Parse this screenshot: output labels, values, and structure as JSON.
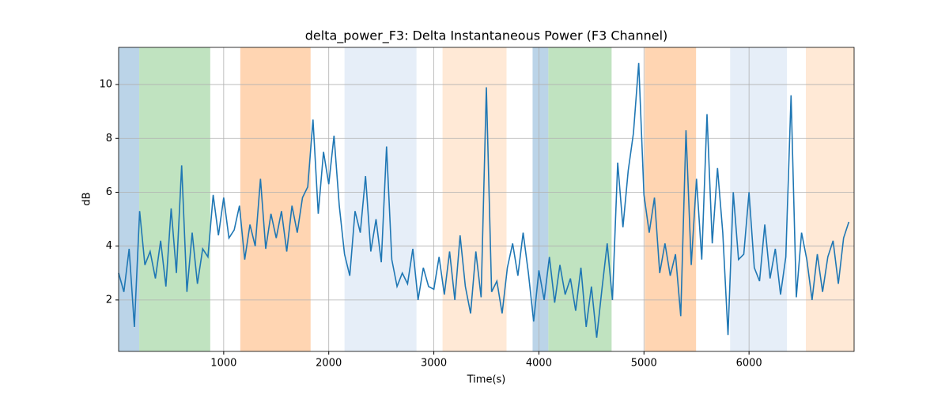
{
  "chart_data": {
    "type": "line",
    "title": "delta_power_F3: Delta Instantaneous Power (F3 Channel)",
    "x_label": "Time(s)",
    "y_label": "dB",
    "xlim": [
      0,
      7000
    ],
    "ylim": [
      0.09,
      11.38
    ],
    "xticks": [
      1000,
      2000,
      3000,
      4000,
      5000,
      6000
    ],
    "yticks": [
      2,
      4,
      6,
      8,
      10
    ],
    "grid": true,
    "spans": [
      {
        "start": 0,
        "end": 196,
        "color": "#bbd4e8"
      },
      {
        "start": 196,
        "end": 872,
        "color": "#c0e3c0"
      },
      {
        "start": 1158,
        "end": 1827,
        "color": "#ffd5b2"
      },
      {
        "start": 2150,
        "end": 2835,
        "color": "#e6eef8"
      },
      {
        "start": 3083,
        "end": 3692,
        "color": "#ffe9d6"
      },
      {
        "start": 3940,
        "end": 4090,
        "color": "#bbd4e8"
      },
      {
        "start": 4090,
        "end": 4692,
        "color": "#c0e3c0"
      },
      {
        "start": 5008,
        "end": 5496,
        "color": "#ffd5b2"
      },
      {
        "start": 5820,
        "end": 6361,
        "color": "#e6eef8"
      },
      {
        "start": 6541,
        "end": 7000,
        "color": "#ffe9d6"
      }
    ],
    "x": [
      0,
      50,
      100,
      150,
      200,
      250,
      300,
      350,
      400,
      450,
      500,
      550,
      600,
      650,
      700,
      750,
      800,
      850,
      900,
      950,
      1000,
      1050,
      1100,
      1150,
      1200,
      1250,
      1300,
      1350,
      1400,
      1450,
      1500,
      1550,
      1600,
      1650,
      1700,
      1750,
      1800,
      1850,
      1900,
      1950,
      2000,
      2050,
      2100,
      2150,
      2200,
      2250,
      2300,
      2350,
      2400,
      2450,
      2500,
      2550,
      2600,
      2650,
      2700,
      2750,
      2800,
      2850,
      2900,
      2950,
      3000,
      3050,
      3100,
      3150,
      3200,
      3250,
      3300,
      3350,
      3400,
      3450,
      3500,
      3550,
      3600,
      3650,
      3700,
      3750,
      3800,
      3850,
      3900,
      3950,
      4000,
      4050,
      4100,
      4150,
      4200,
      4250,
      4300,
      4350,
      4400,
      4450,
      4500,
      4550,
      4600,
      4650,
      4700,
      4750,
      4800,
      4850,
      4900,
      4950,
      5000,
      5050,
      5100,
      5150,
      5200,
      5250,
      5300,
      5350,
      5400,
      5450,
      5500,
      5550,
      5600,
      5650,
      5700,
      5750,
      5800,
      5850,
      5900,
      5950,
      6000,
      6050,
      6100,
      6150,
      6200,
      6250,
      6300,
      6350,
      6400,
      6450,
      6500,
      6550,
      6600,
      6650,
      6700,
      6750,
      6800,
      6850,
      6900,
      6950
    ],
    "series": [
      {
        "name": "delta_power_F3",
        "color": "#1f77b4",
        "values": [
          3.0,
          2.3,
          3.9,
          1.0,
          5.3,
          3.3,
          3.8,
          2.8,
          4.2,
          2.5,
          5.4,
          3.0,
          7.0,
          2.3,
          4.5,
          2.6,
          3.9,
          3.6,
          5.9,
          4.4,
          5.8,
          4.3,
          4.6,
          5.5,
          3.5,
          4.8,
          4.0,
          6.5,
          3.9,
          5.2,
          4.3,
          5.3,
          3.8,
          5.5,
          4.5,
          5.8,
          6.2,
          8.7,
          5.2,
          7.5,
          6.3,
          8.1,
          5.5,
          3.7,
          2.9,
          5.3,
          4.5,
          6.6,
          3.8,
          5.0,
          3.4,
          7.7,
          3.5,
          2.5,
          3.0,
          2.6,
          3.9,
          2.0,
          3.2,
          2.5,
          2.4,
          3.6,
          2.2,
          3.8,
          2.0,
          4.4,
          2.5,
          1.5,
          3.8,
          2.1,
          9.9,
          2.3,
          2.7,
          1.5,
          3.2,
          4.1,
          2.9,
          4.5,
          3.0,
          1.2,
          3.1,
          2.0,
          3.6,
          1.9,
          3.3,
          2.2,
          2.8,
          1.6,
          3.2,
          1.0,
          2.5,
          0.6,
          2.4,
          4.1,
          2.0,
          7.1,
          4.7,
          6.8,
          8.2,
          10.8,
          5.9,
          4.5,
          5.8,
          3.0,
          4.1,
          2.9,
          3.7,
          1.4,
          8.3,
          3.3,
          6.5,
          3.5,
          8.9,
          4.1,
          6.9,
          4.5,
          0.7,
          6.0,
          3.5,
          3.7,
          6.0,
          3.2,
          2.7,
          4.8,
          2.8,
          3.9,
          2.2,
          3.6,
          9.6,
          2.1,
          4.5,
          3.5,
          2.0,
          3.7,
          2.3,
          3.6,
          4.2,
          2.6,
          4.3,
          4.9
        ]
      }
    ]
  }
}
